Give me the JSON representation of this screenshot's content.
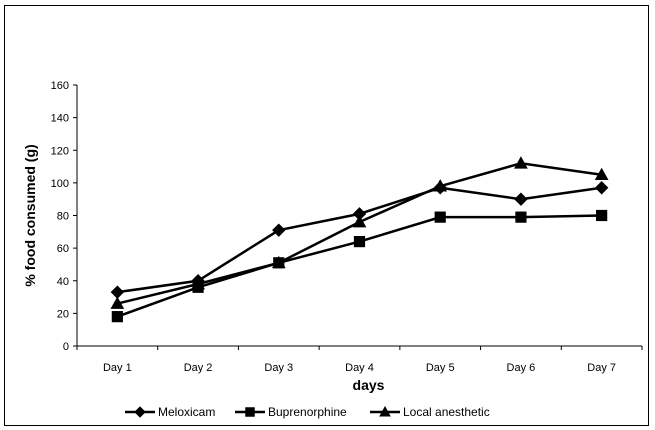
{
  "chart_data": {
    "type": "line",
    "title": "",
    "xlabel": "days",
    "ylabel": "% food consumed (g)",
    "categories": [
      "Day 1",
      "Day 2",
      "Day 3",
      "Day 4",
      "Day 5",
      "Day 6",
      "Day 7"
    ],
    "ylim": [
      0,
      160
    ],
    "yticks": [
      "0",
      "20",
      "40",
      "60",
      "80",
      "100",
      "120",
      "140",
      "160"
    ],
    "grid": false,
    "legend_position": "bottom",
    "series": [
      {
        "name": "Meloxicam",
        "marker": "diamond",
        "color": "#000000",
        "values": [
          33,
          40,
          71,
          81,
          97,
          90,
          97
        ]
      },
      {
        "name": "Buprenorphine",
        "marker": "square",
        "color": "#000000",
        "values": [
          18,
          36,
          51,
          64,
          79,
          79,
          80
        ]
      },
      {
        "name": "Local anesthetic",
        "marker": "triangle",
        "color": "#000000",
        "values": [
          26,
          38,
          51,
          76,
          98,
          112,
          105
        ]
      }
    ]
  }
}
